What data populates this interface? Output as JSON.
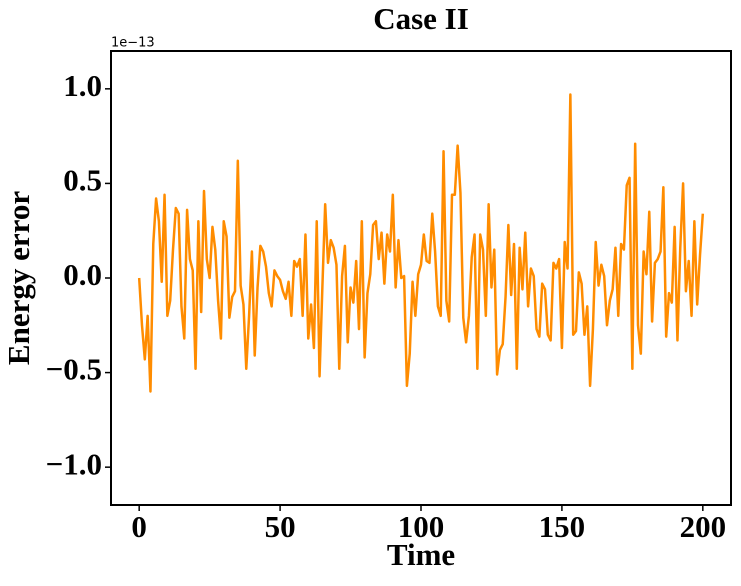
{
  "chart_data": {
    "type": "line",
    "title": "Case II",
    "xlabel": "Time",
    "ylabel": "Energy error",
    "y_offset_text": "1e−13",
    "x": [
      0,
      1,
      2,
      3,
      4,
      5,
      6,
      7,
      8,
      9,
      10,
      11,
      12,
      13,
      14,
      15,
      16,
      17,
      18,
      19,
      20,
      21,
      22,
      23,
      24,
      25,
      26,
      27,
      28,
      29,
      30,
      31,
      32,
      33,
      34,
      35,
      36,
      37,
      38,
      39,
      40,
      41,
      42,
      43,
      44,
      45,
      46,
      47,
      48,
      49,
      50,
      51,
      52,
      53,
      54,
      55,
      56,
      57,
      58,
      59,
      60,
      61,
      62,
      63,
      64,
      65,
      66,
      67,
      68,
      69,
      70,
      71,
      72,
      73,
      74,
      75,
      76,
      77,
      78,
      79,
      80,
      81,
      82,
      83,
      84,
      85,
      86,
      87,
      88,
      89,
      90,
      91,
      92,
      93,
      94,
      95,
      96,
      97,
      98,
      99,
      100,
      101,
      102,
      103,
      104,
      105,
      106,
      107,
      108,
      109,
      110,
      111,
      112,
      113,
      114,
      115,
      116,
      117,
      118,
      119,
      120,
      121,
      122,
      123,
      124,
      125,
      126,
      127,
      128,
      129,
      130,
      131,
      132,
      133,
      134,
      135,
      136,
      137,
      138,
      139,
      140,
      141,
      142,
      143,
      144,
      145,
      146,
      147,
      148,
      149,
      150,
      151,
      152,
      153,
      154,
      155,
      156,
      157,
      158,
      159,
      160,
      161,
      162,
      163,
      164,
      165,
      166,
      167,
      168,
      169,
      170,
      171,
      172,
      173,
      174,
      175,
      176,
      177,
      178,
      179,
      180,
      181,
      182,
      183,
      184,
      185,
      186,
      187,
      188,
      189,
      190,
      191,
      192,
      193,
      194,
      195,
      196,
      197,
      198,
      199,
      200
    ],
    "series": [
      {
        "color": "#ff8c00",
        "values": [
          0,
          -0.25,
          -0.43,
          -0.2,
          -0.6,
          0.18,
          0.42,
          0.3,
          -0.02,
          0.44,
          -0.2,
          -0.12,
          0.15,
          0.37,
          0.34,
          -0.15,
          -0.32,
          0.36,
          0.1,
          0.04,
          -0.48,
          0.3,
          -0.18,
          0.46,
          0.1,
          0,
          0.27,
          0.15,
          -0.12,
          -0.32,
          0.3,
          0.22,
          -0.21,
          -0.1,
          -0.07,
          0.62,
          -0.04,
          -0.14,
          -0.48,
          -0.2,
          0.14,
          -0.41,
          -0.05,
          0.17,
          0.14,
          0.06,
          -0.08,
          -0.15,
          0.04,
          0.01,
          -0.01,
          -0.07,
          -0.11,
          -0.02,
          -0.2,
          0.09,
          0.06,
          0.1,
          -0.2,
          0.23,
          -0.32,
          -0.14,
          -0.37,
          0.3,
          -0.52,
          -0.05,
          0.39,
          0.08,
          0.2,
          0.16,
          0.07,
          -0.48,
          0.01,
          0.17,
          -0.34,
          -0.05,
          -0.13,
          0.09,
          -0.27,
          0.3,
          -0.42,
          -0.08,
          0.02,
          0.28,
          0.3,
          0.1,
          0.24,
          -0.03,
          0.23,
          0.14,
          0.44,
          -0.05,
          0.2,
          0,
          0.01,
          -0.57,
          -0.4,
          -0.02,
          -0.2,
          0.02,
          0.07,
          0.23,
          0.09,
          0.08,
          0.34,
          0.14,
          -0.15,
          -0.2,
          0.67,
          -0.12,
          -0.23,
          0.44,
          0.44,
          0.7,
          0.45,
          -0.21,
          -0.34,
          -0.2,
          0.11,
          0.23,
          -0.48,
          0.23,
          0.15,
          -0.2,
          0.39,
          -0.05,
          0.15,
          -0.51,
          -0.38,
          -0.35,
          -0.1,
          0.28,
          -0.09,
          0.18,
          -0.48,
          0.16,
          -0.06,
          0.24,
          -0.15,
          0.05,
          0.01,
          -0.27,
          -0.31,
          -0.03,
          -0.06,
          -0.3,
          -0.33,
          0.08,
          0.05,
          0.1,
          -0.37,
          0.19,
          0.05,
          0.97,
          -0.3,
          -0.28,
          0.03,
          -0.03,
          -0.3,
          -0.15,
          -0.57,
          -0.27,
          0.19,
          -0.04,
          0.07,
          0.01,
          -0.25,
          -0.12,
          -0.06,
          0.16,
          -0.2,
          0.18,
          0.15,
          0.49,
          0.53,
          -0.48,
          0.71,
          -0.25,
          -0.4,
          0.14,
          0.02,
          0.35,
          -0.23,
          0.08,
          0.1,
          0.14,
          0.48,
          -0.31,
          -0.08,
          -0.13,
          0.27,
          -0.33,
          0.16,
          0.5,
          -0.07,
          0.09,
          -0.2,
          0.3,
          -0.14,
          0.12,
          0.34
        ]
      }
    ],
    "xlim": [
      -10,
      210
    ],
    "xticks": [
      0,
      50,
      100,
      150,
      200
    ],
    "ylim": [
      -1.2,
      1.2
    ],
    "yticks": [
      {
        "value": -1,
        "label": "−1.0"
      },
      {
        "value": -0.5,
        "label": "−0.5"
      },
      {
        "value": 0,
        "label": "0.0"
      },
      {
        "value": 0.5,
        "label": "0.5"
      },
      {
        "value": 1,
        "label": "1.0"
      }
    ]
  }
}
